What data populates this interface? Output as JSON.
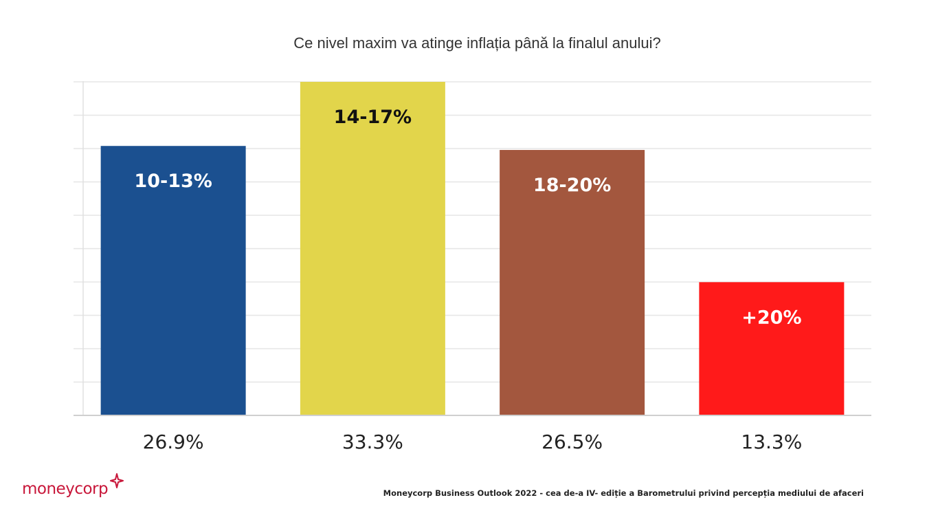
{
  "chart_data": {
    "type": "bar",
    "title": "Ce nivel maxim va atinge inflația până la finalul anului?",
    "categories": [
      "10-13%",
      "14-17%",
      "18-20%",
      "+20%"
    ],
    "values": [
      26.9,
      33.3,
      26.5,
      13.3
    ],
    "value_labels": [
      "26.9%",
      "33.3%",
      "26.5%",
      "13.3%"
    ],
    "colors": [
      "#1b5090",
      "#e2d54b",
      "#a3573e",
      "#ff1a1a"
    ],
    "label_colors": [
      "#ffffff",
      "#111111",
      "#ffffff",
      "#ffffff"
    ],
    "ylim": [
      0,
      33.3
    ],
    "grid": true,
    "xlabel": "",
    "ylabel": ""
  },
  "footer": {
    "brand": "moneycorp",
    "source": "Moneycorp Business Outlook 2022 - cea de-a IV- ediție a Barometrului privind percepția mediului de afaceri"
  }
}
